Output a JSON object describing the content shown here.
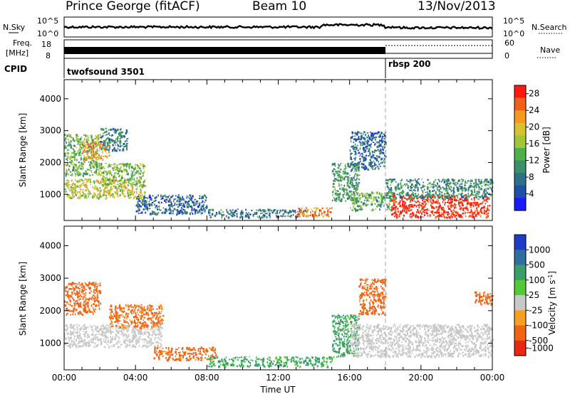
{
  "header": {
    "radar": "Prince George (fitACF)",
    "beam": "Beam 10",
    "date": "13/Nov/2013"
  },
  "noise_panel": {
    "left_label": "N.Sky",
    "left_ticks": [
      "10^5",
      "10^0"
    ],
    "right_label": "N.Search",
    "right_ticks": [
      "10^5",
      "10^0"
    ]
  },
  "freq_panel": {
    "left_label_1": "Freq.",
    "left_label_2": "[MHz]",
    "left_ticks": [
      "18",
      "8"
    ],
    "right_label": "Nave",
    "right_ticks": [
      "60",
      "0"
    ]
  },
  "cpid_panel": {
    "label": "CPID",
    "segments": [
      {
        "name": "twofsound",
        "id": "3501",
        "start_hour": 0,
        "end_hour": 18.0
      },
      {
        "name": "rbsp",
        "id": "200",
        "start_hour": 18.0,
        "end_hour": 24
      }
    ]
  },
  "chart_data": [
    {
      "type": "heatmap",
      "title": "",
      "xlabel": "",
      "ylabel": "Slant Range [km]",
      "x_range_hours": [
        0,
        24
      ],
      "xticks": [
        "00:00",
        "04:00",
        "08:00",
        "12:00",
        "16:00",
        "20:00",
        "00:00"
      ],
      "ylim": [
        180,
        4600
      ],
      "yticks": [
        1000,
        2000,
        3000,
        4000
      ],
      "colorbar": {
        "label": "Power [dB]",
        "range": [
          0,
          30
        ],
        "ticks": [
          "4",
          "8",
          "12",
          "16",
          "20",
          "24",
          "28"
        ],
        "colors": [
          "#1a1aff",
          "#1f4fa8",
          "#2e6f8a",
          "#3d8f6a",
          "#4fb04a",
          "#a3c53a",
          "#d9c230",
          "#f59a20",
          "#f06018",
          "#ff1a10"
        ]
      },
      "regions": [
        {
          "t": [
            0.0,
            2.0
          ],
          "r": [
            1600,
            2900
          ],
          "value": 14
        },
        {
          "t": [
            0.0,
            4.5
          ],
          "r": [
            900,
            1500
          ],
          "value": 18
        },
        {
          "t": [
            1.0,
            2.5
          ],
          "r": [
            2100,
            2700
          ],
          "value": 22
        },
        {
          "t": [
            2.0,
            4.5
          ],
          "r": [
            1300,
            2000
          ],
          "value": 15
        },
        {
          "t": [
            2.0,
            3.5
          ],
          "r": [
            2400,
            3100
          ],
          "value": 9
        },
        {
          "t": [
            4.0,
            8.0
          ],
          "r": [
            400,
            1000
          ],
          "value": 7
        },
        {
          "t": [
            8.0,
            13.5
          ],
          "r": [
            300,
            550
          ],
          "value": 8
        },
        {
          "t": [
            13.0,
            15.0
          ],
          "r": [
            330,
            600
          ],
          "value": 24
        },
        {
          "t": [
            15.0,
            16.5
          ],
          "r": [
            800,
            2000
          ],
          "value": 11
        },
        {
          "t": [
            16.0,
            18.0
          ],
          "r": [
            1800,
            3000
          ],
          "value": 7
        },
        {
          "t": [
            16.0,
            18.5
          ],
          "r": [
            500,
            1100
          ],
          "value": 13
        },
        {
          "t": [
            18.3,
            23.8
          ],
          "r": [
            300,
            1000
          ],
          "value": 29
        },
        {
          "t": [
            18.0,
            24.0
          ],
          "r": [
            900,
            1500
          ],
          "value": 10
        }
      ]
    },
    {
      "type": "heatmap",
      "title": "",
      "xlabel": "Time UT",
      "ylabel": "Slant Range [km]",
      "x_range_hours": [
        0,
        24
      ],
      "xticks": [
        "00:00",
        "04:00",
        "08:00",
        "12:00",
        "16:00",
        "20:00",
        "00:00"
      ],
      "ylim": [
        180,
        4600
      ],
      "yticks": [
        1000,
        2000,
        3000,
        4000
      ],
      "colorbar": {
        "label": "Velocity [m s^-1]",
        "ticks": [
          "1000",
          "500",
          "100",
          "25",
          "-25",
          "-100",
          "-500",
          "-1000"
        ],
        "colors": [
          "#1e3cc8",
          "#2f6fa0",
          "#3a9e6a",
          "#55c838",
          "#c8c8c8",
          "#f5a020",
          "#f06414",
          "#e62814"
        ]
      },
      "regions": [
        {
          "t": [
            0.0,
            2.0
          ],
          "r": [
            1900,
            2900
          ],
          "value": -300
        },
        {
          "t": [
            0.0,
            5.5
          ],
          "r": [
            900,
            1600
          ],
          "value": 0
        },
        {
          "t": [
            2.5,
            5.5
          ],
          "r": [
            1500,
            2200
          ],
          "value": -150
        },
        {
          "t": [
            5.0,
            8.5
          ],
          "r": [
            500,
            900
          ],
          "value": -200
        },
        {
          "t": [
            8.0,
            15.0
          ],
          "r": [
            300,
            600
          ],
          "value": 80
        },
        {
          "t": [
            15.0,
            16.5
          ],
          "r": [
            600,
            1900
          ],
          "value": 90
        },
        {
          "t": [
            16.0,
            24.0
          ],
          "r": [
            600,
            1600
          ],
          "value": 0
        },
        {
          "t": [
            16.5,
            18.0
          ],
          "r": [
            1900,
            3000
          ],
          "value": -300
        },
        {
          "t": [
            23.0,
            24.0
          ],
          "r": [
            2200,
            2600
          ],
          "value": -300
        }
      ]
    }
  ]
}
